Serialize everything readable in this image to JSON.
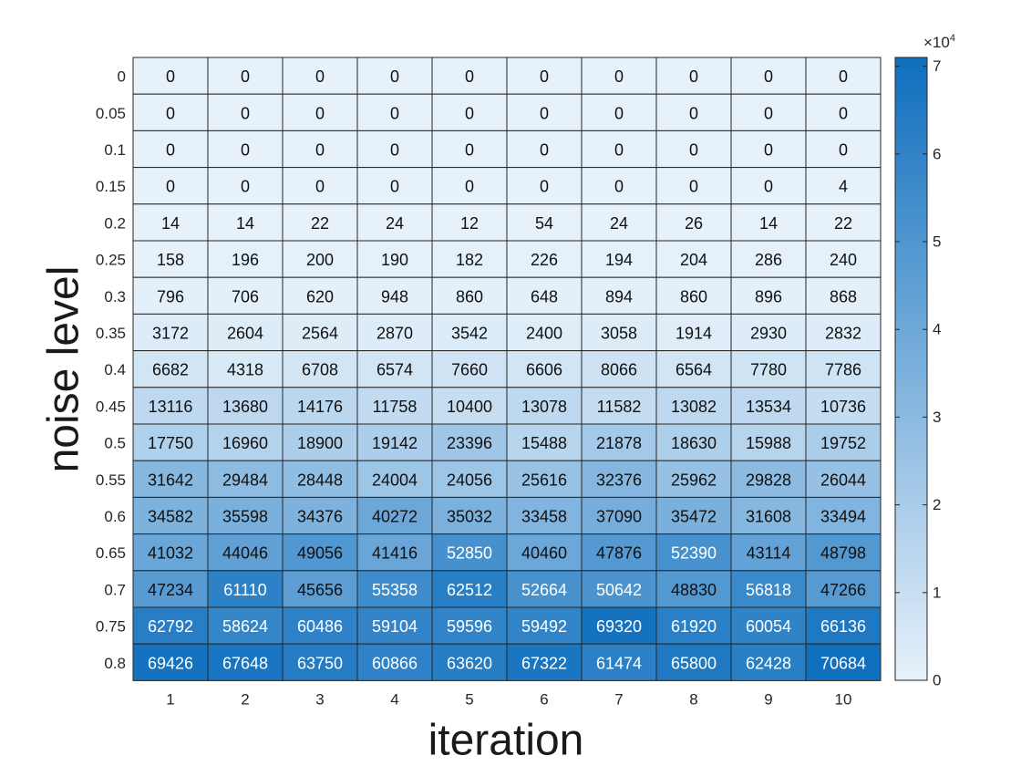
{
  "chart_data": {
    "type": "heatmap",
    "xlabel": "iteration",
    "ylabel": "noise level",
    "x": [
      "1",
      "2",
      "3",
      "4",
      "5",
      "6",
      "7",
      "8",
      "9",
      "10"
    ],
    "y": [
      "0",
      "0.05",
      "0.1",
      "0.15",
      "0.2",
      "0.25",
      "0.3",
      "0.35",
      "0.4",
      "0.45",
      "0.5",
      "0.55",
      "0.6",
      "0.65",
      "0.7",
      "0.75",
      "0.8"
    ],
    "values": [
      [
        0,
        0,
        0,
        0,
        0,
        0,
        0,
        0,
        0,
        0
      ],
      [
        0,
        0,
        0,
        0,
        0,
        0,
        0,
        0,
        0,
        0
      ],
      [
        0,
        0,
        0,
        0,
        0,
        0,
        0,
        0,
        0,
        0
      ],
      [
        0,
        0,
        0,
        0,
        0,
        0,
        0,
        0,
        0,
        4
      ],
      [
        14,
        14,
        22,
        24,
        12,
        54,
        24,
        26,
        14,
        22
      ],
      [
        158,
        196,
        200,
        190,
        182,
        226,
        194,
        204,
        286,
        240
      ],
      [
        796,
        706,
        620,
        948,
        860,
        648,
        894,
        860,
        896,
        868
      ],
      [
        3172,
        2604,
        2564,
        2870,
        3542,
        2400,
        3058,
        1914,
        2930,
        2832
      ],
      [
        6682,
        4318,
        6708,
        6574,
        7660,
        6606,
        8066,
        6564,
        7780,
        7786
      ],
      [
        13116,
        13680,
        14176,
        11758,
        10400,
        13078,
        11582,
        13082,
        13534,
        10736
      ],
      [
        17750,
        16960,
        18900,
        19142,
        23396,
        15488,
        21878,
        18630,
        15988,
        19752
      ],
      [
        31642,
        29484,
        28448,
        24004,
        24056,
        25616,
        32376,
        25962,
        29828,
        26044
      ],
      [
        34582,
        35598,
        34376,
        40272,
        35032,
        33458,
        37090,
        35472,
        31608,
        33494
      ],
      [
        41032,
        44046,
        49056,
        41416,
        52850,
        40460,
        47876,
        52390,
        43114,
        48798
      ],
      [
        47234,
        61110,
        45656,
        55358,
        62512,
        52664,
        50642,
        48830,
        56818,
        47266
      ],
      [
        62792,
        58624,
        60486,
        59104,
        59596,
        59492,
        69320,
        61920,
        60054,
        66136
      ],
      [
        69426,
        67648,
        63750,
        60866,
        63620,
        67322,
        61474,
        65800,
        62428,
        70684
      ]
    ],
    "colorbar": {
      "ticks": [
        "0",
        "1",
        "2",
        "3",
        "4",
        "5",
        "6",
        "7"
      ],
      "multiplier_base": "×10",
      "multiplier_exp": "4",
      "range": [
        0,
        71000
      ]
    },
    "colors": {
      "low": "#e6f1fa",
      "high": "#0f6fbe"
    },
    "grid": true,
    "legend": "colorbar-right"
  }
}
